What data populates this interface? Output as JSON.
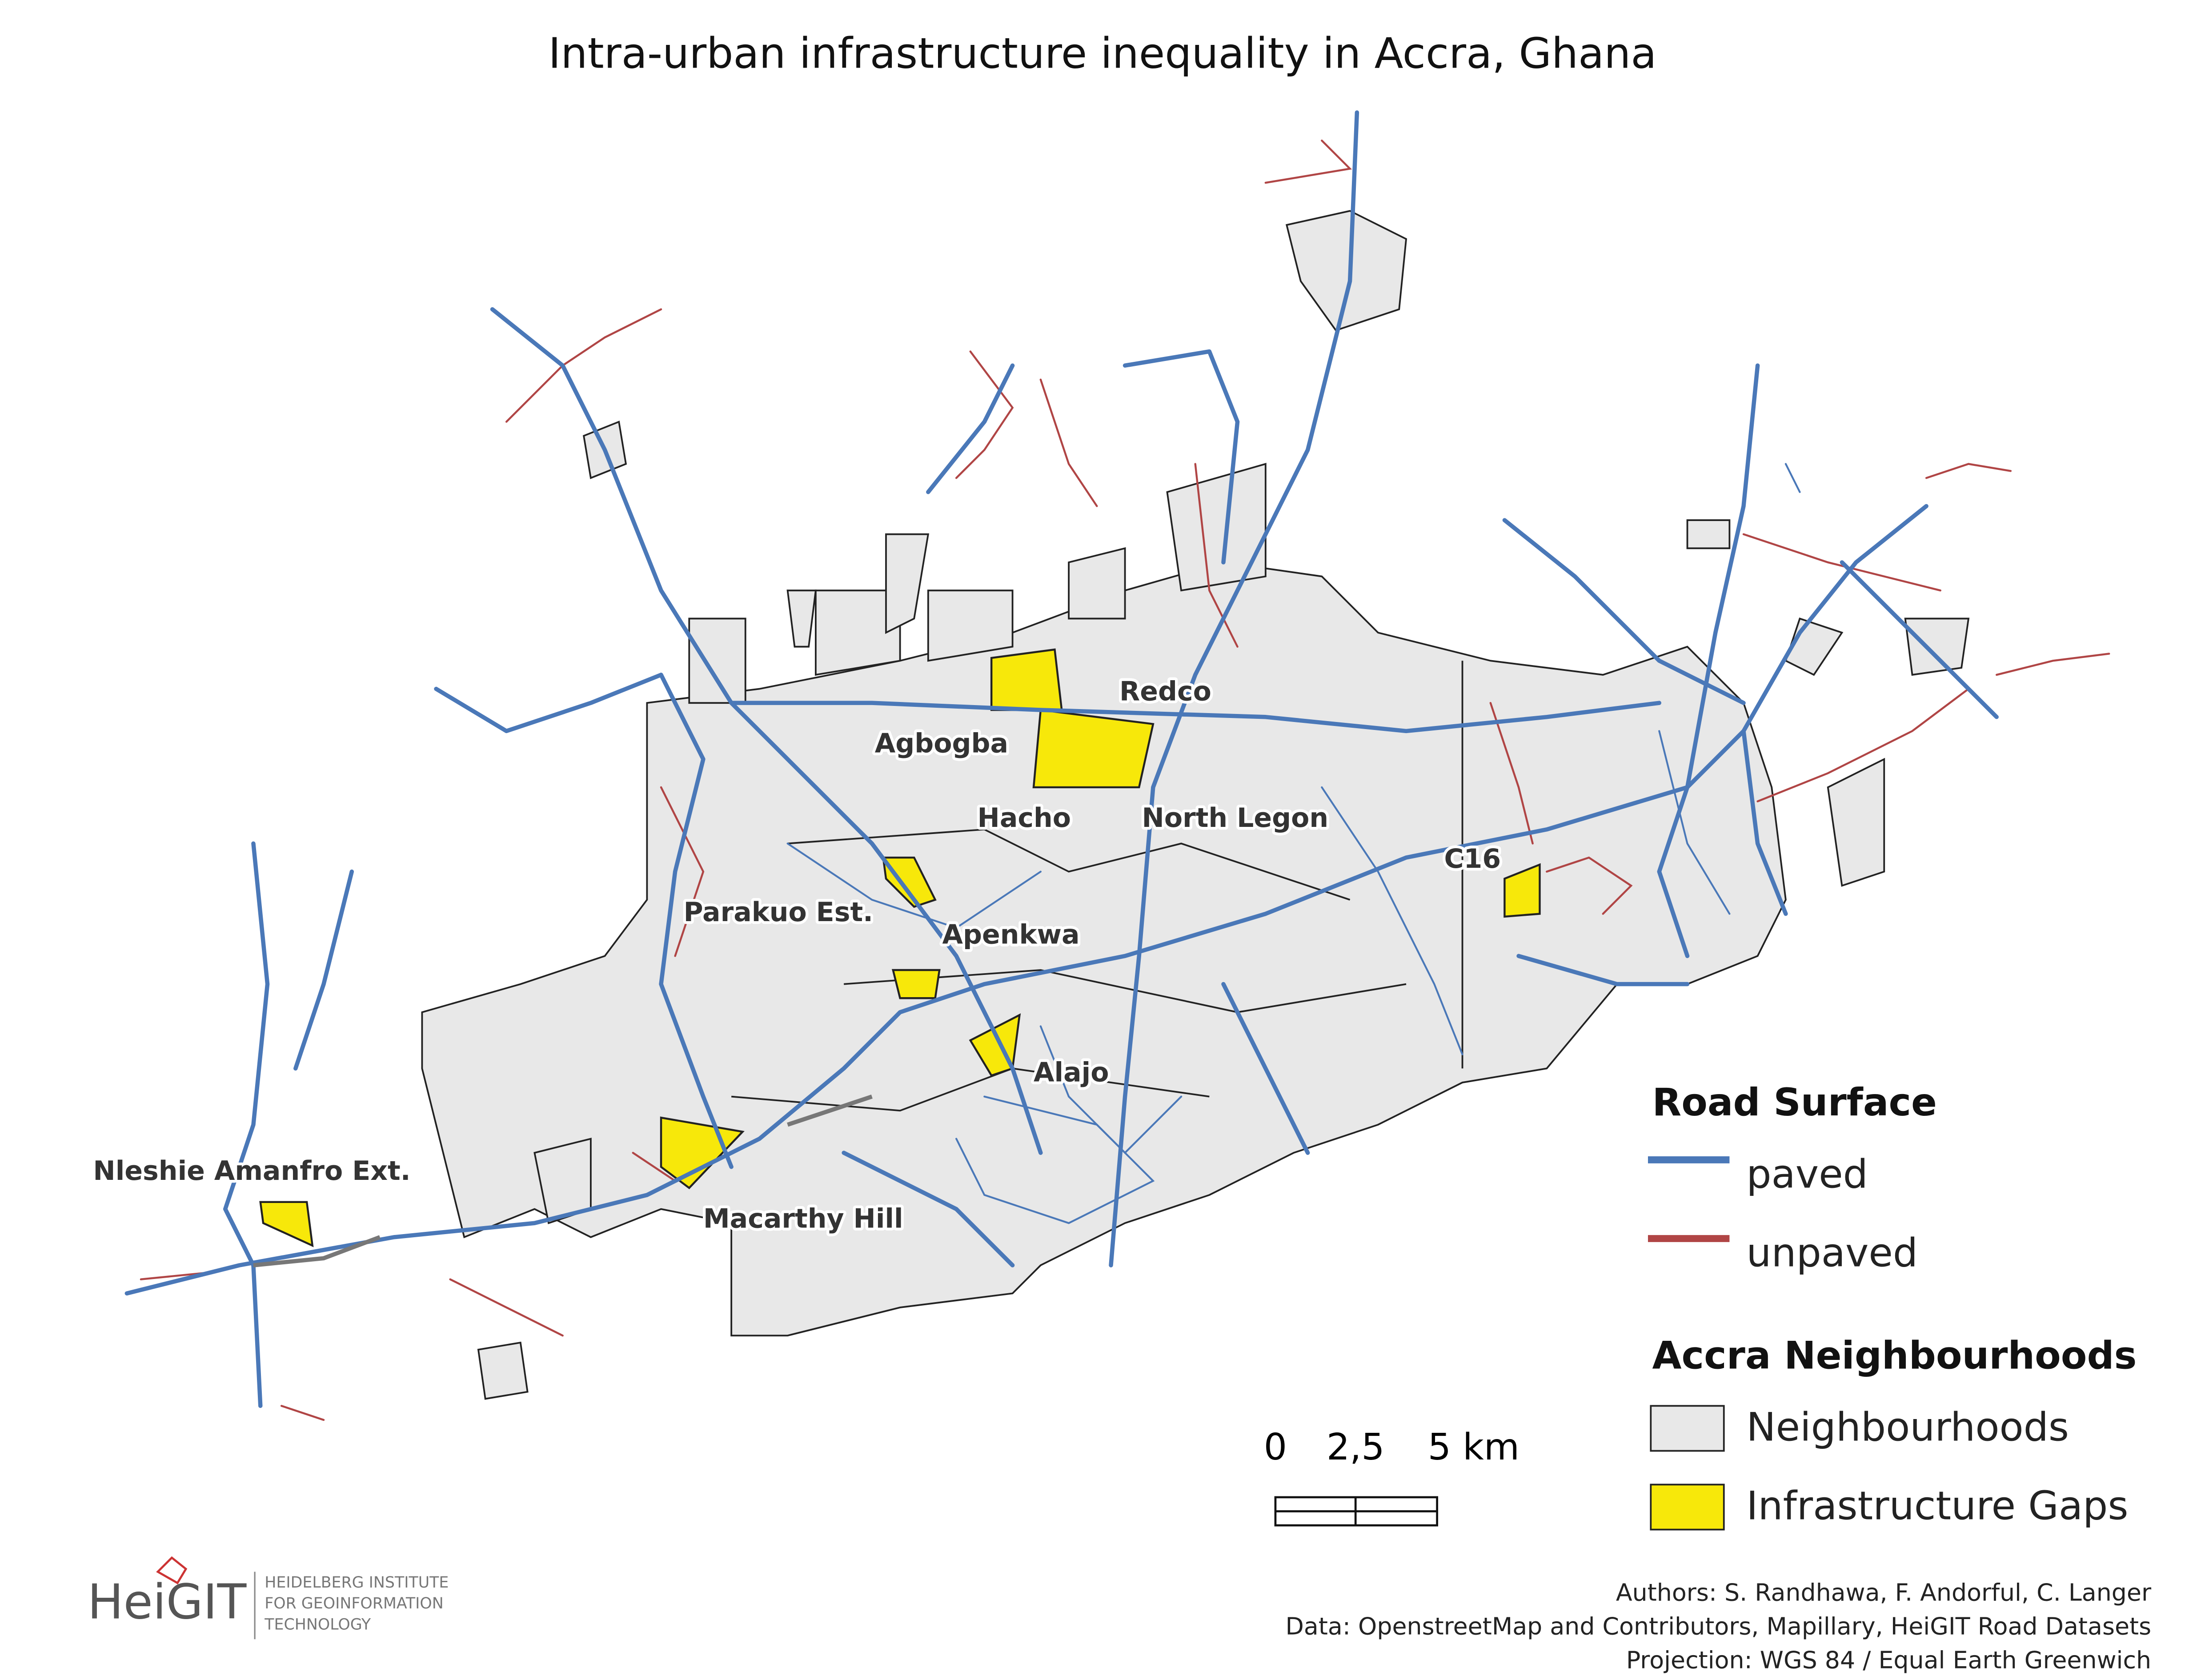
{
  "title": "Intra-urban infrastructure inequality in Accra, Ghana",
  "neighbourhood_labels": [
    "Redco",
    "Agbogba",
    "Hacho",
    "North Legon",
    "C16",
    "Parakuo Est.",
    "Apenkwa",
    "Alajo",
    "Macarthy Hill",
    "Nleshie Amanfro Ext."
  ],
  "legend": {
    "road_surface": {
      "title": "Road Surface",
      "items": [
        "paved",
        "unpaved"
      ]
    },
    "neighbourhoods": {
      "title": "Accra Neighbourhoods",
      "items": [
        "Neighbourhoods",
        "Infrastructure Gaps"
      ]
    }
  },
  "scale_bar": {
    "labels": [
      "0",
      "2,5",
      "5 km"
    ]
  },
  "logo": {
    "name": "HeiGIT",
    "subtitle": [
      "HEIDELBERG INSTITUTE",
      "FOR GEOINFORMATION",
      "TECHNOLOGY"
    ]
  },
  "credits": [
    "Authors: S. Randhawa,  F. Andorful, C. Langer",
    "Data: OpenstreetMap and Contributors, Mapillary, HeiGIT Road Datasets",
    "Projection: WGS 84 / Equal Earth Greenwich"
  ]
}
